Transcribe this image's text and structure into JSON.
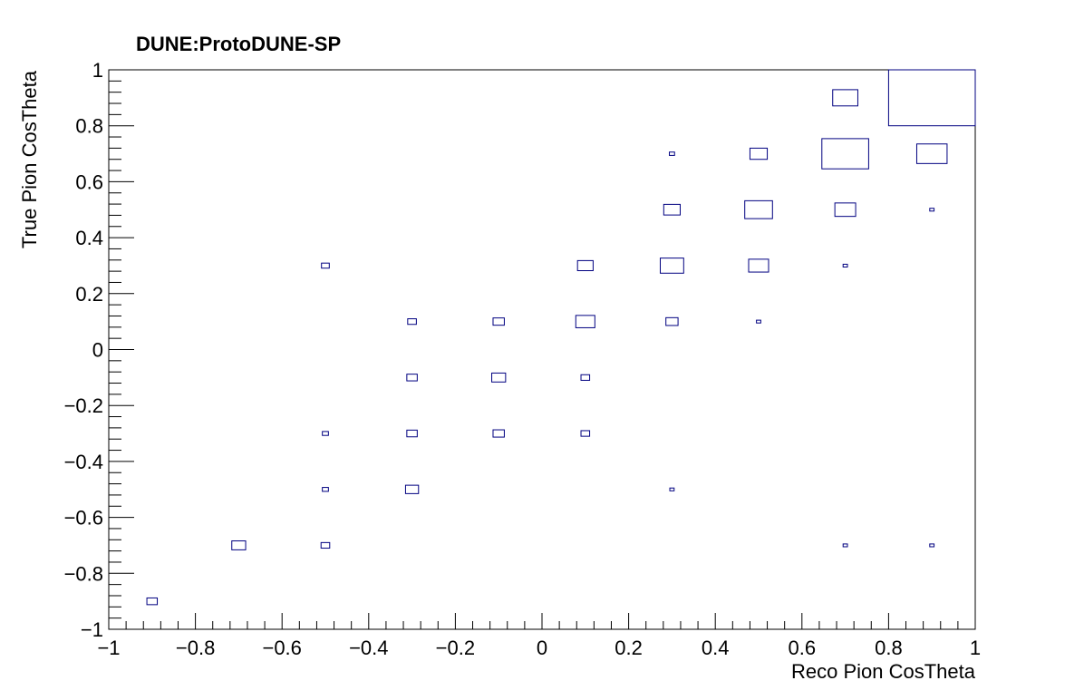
{
  "chart_data": {
    "type": "heatmap",
    "title": "DUNE:ProtoDUNE-SP",
    "xlabel": "Reco Pion CosTheta",
    "ylabel": "True Pion CosTheta",
    "xlim": [
      -1,
      1
    ],
    "ylim": [
      -1,
      1
    ],
    "bin_width": 0.2,
    "x_ticks": [
      -1,
      -0.8,
      -0.6,
      -0.4,
      -0.2,
      0,
      0.2,
      0.4,
      0.6,
      0.8,
      1
    ],
    "x_tick_labels": [
      "−1",
      "−0.8",
      "−0.6",
      "−0.4",
      "−0.2",
      "0",
      "0.2",
      "0.4",
      "0.6",
      "0.8",
      "1"
    ],
    "y_ticks": [
      -1,
      -0.8,
      -0.6,
      -0.4,
      -0.2,
      0,
      0.2,
      0.4,
      0.6,
      0.8,
      1
    ],
    "y_tick_labels": [
      "−1",
      "−0.8",
      "−0.6",
      "−0.4",
      "−0.2",
      "0",
      "0.2",
      "0.4",
      "0.6",
      "0.8",
      "1"
    ],
    "grid": false,
    "box_color": "#000080",
    "bins": [
      {
        "x": -0.9,
        "y": -0.9,
        "w": 0.12
      },
      {
        "x": -0.7,
        "y": -0.7,
        "w": 0.16
      },
      {
        "x": -0.5,
        "y": -0.7,
        "w": 0.1
      },
      {
        "x": -0.5,
        "y": -0.5,
        "w": 0.07
      },
      {
        "x": -0.5,
        "y": -0.3,
        "w": 0.07
      },
      {
        "x": -0.5,
        "y": 0.3,
        "w": 0.09
      },
      {
        "x": -0.3,
        "y": -0.5,
        "w": 0.15
      },
      {
        "x": -0.3,
        "y": -0.3,
        "w": 0.12
      },
      {
        "x": -0.3,
        "y": -0.1,
        "w": 0.12
      },
      {
        "x": -0.3,
        "y": 0.1,
        "w": 0.1
      },
      {
        "x": -0.1,
        "y": -0.3,
        "w": 0.13
      },
      {
        "x": -0.1,
        "y": -0.1,
        "w": 0.16
      },
      {
        "x": -0.1,
        "y": 0.1,
        "w": 0.13
      },
      {
        "x": 0.1,
        "y": -0.3,
        "w": 0.1
      },
      {
        "x": 0.1,
        "y": -0.1,
        "w": 0.1
      },
      {
        "x": 0.1,
        "y": 0.1,
        "w": 0.22
      },
      {
        "x": 0.1,
        "y": 0.3,
        "w": 0.18
      },
      {
        "x": 0.3,
        "y": -0.5,
        "w": 0.05
      },
      {
        "x": 0.3,
        "y": 0.1,
        "w": 0.14
      },
      {
        "x": 0.3,
        "y": 0.3,
        "w": 0.27
      },
      {
        "x": 0.3,
        "y": 0.5,
        "w": 0.19
      },
      {
        "x": 0.3,
        "y": 0.7,
        "w": 0.06
      },
      {
        "x": 0.5,
        "y": 0.1,
        "w": 0.05
      },
      {
        "x": 0.5,
        "y": 0.3,
        "w": 0.23
      },
      {
        "x": 0.5,
        "y": 0.5,
        "w": 0.32
      },
      {
        "x": 0.5,
        "y": 0.7,
        "w": 0.2
      },
      {
        "x": 0.7,
        "y": -0.7,
        "w": 0.05
      },
      {
        "x": 0.7,
        "y": 0.3,
        "w": 0.05
      },
      {
        "x": 0.7,
        "y": 0.5,
        "w": 0.24
      },
      {
        "x": 0.7,
        "y": 0.7,
        "w": 0.54
      },
      {
        "x": 0.7,
        "y": 0.9,
        "w": 0.29
      },
      {
        "x": 0.9,
        "y": -0.7,
        "w": 0.05
      },
      {
        "x": 0.9,
        "y": 0.5,
        "w": 0.05
      },
      {
        "x": 0.9,
        "y": 0.7,
        "w": 0.35
      },
      {
        "x": 0.9,
        "y": 0.9,
        "w": 1.0
      }
    ]
  }
}
